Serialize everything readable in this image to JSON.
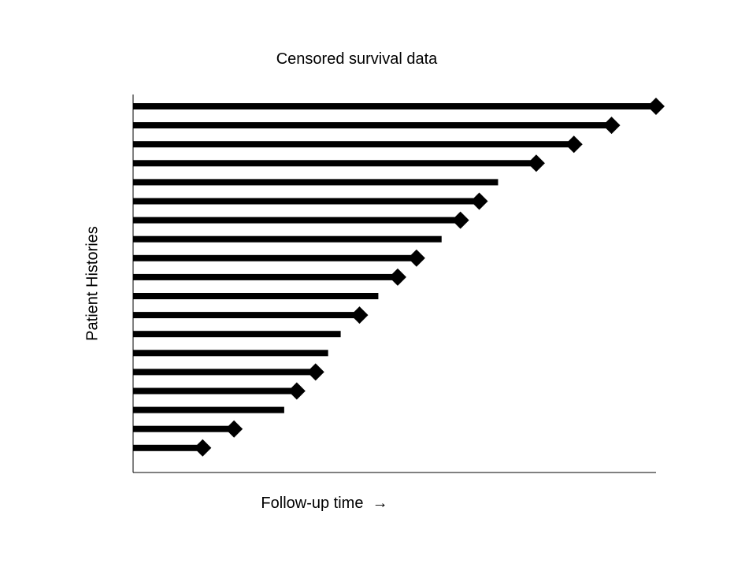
{
  "chart_data": {
    "type": "bar",
    "orientation": "horizontal",
    "title": "Censored survival data",
    "xlabel": "Follow-up time",
    "xlabel_arrow": "→",
    "ylabel": "Patient Histories",
    "xlim": [
      0,
      100
    ],
    "grid": false,
    "legend": "none",
    "colors": {
      "line": "#000000",
      "marker": "#000000"
    },
    "series": [
      {
        "follow_up": 100,
        "event": true
      },
      {
        "follow_up": 91.5,
        "event": true
      },
      {
        "follow_up": 84.3,
        "event": true
      },
      {
        "follow_up": 77.1,
        "event": true
      },
      {
        "follow_up": 69.8,
        "event": false
      },
      {
        "follow_up": 66.2,
        "event": true
      },
      {
        "follow_up": 62.6,
        "event": true
      },
      {
        "follow_up": 59.0,
        "event": false
      },
      {
        "follow_up": 54.2,
        "event": true
      },
      {
        "follow_up": 50.6,
        "event": true
      },
      {
        "follow_up": 46.9,
        "event": false
      },
      {
        "follow_up": 43.3,
        "event": true
      },
      {
        "follow_up": 39.7,
        "event": false
      },
      {
        "follow_up": 37.3,
        "event": false
      },
      {
        "follow_up": 34.9,
        "event": true
      },
      {
        "follow_up": 31.3,
        "event": true
      },
      {
        "follow_up": 28.9,
        "event": false
      },
      {
        "follow_up": 19.3,
        "event": true
      },
      {
        "follow_up": 13.3,
        "event": true
      }
    ]
  }
}
